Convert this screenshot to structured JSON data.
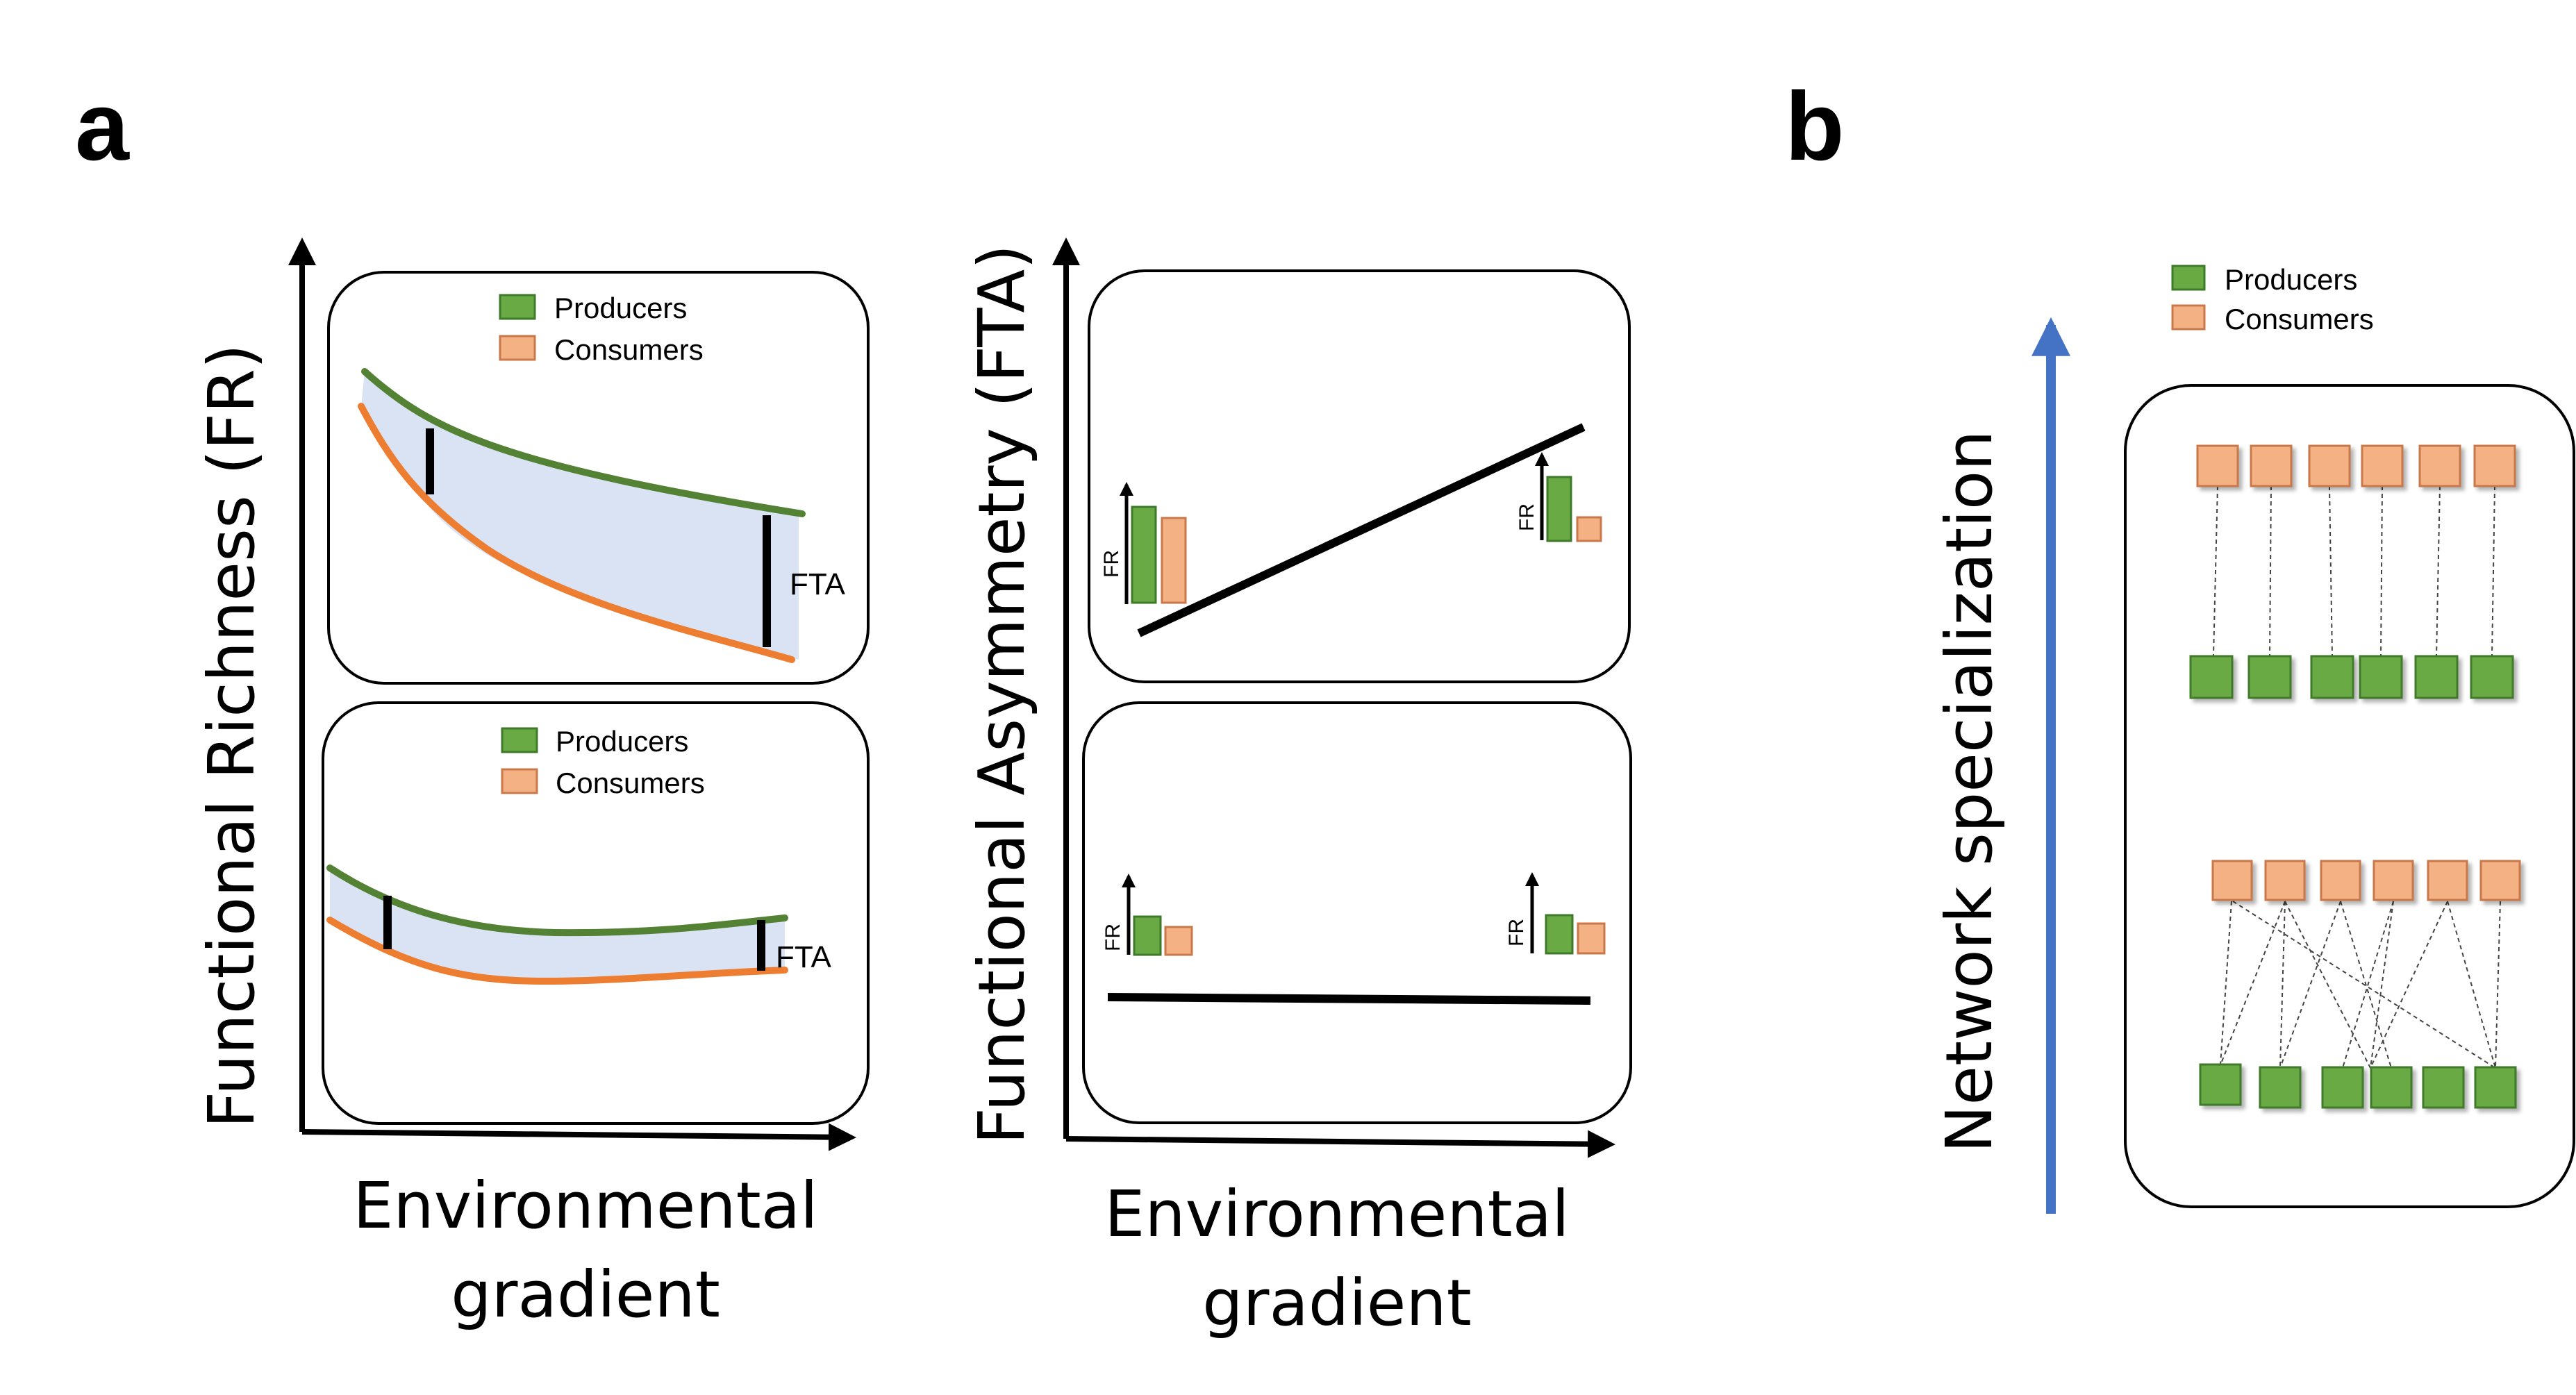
{
  "panel_a": {
    "letter": "a",
    "left_chart": {
      "ylabel": "Functional Richness (FR)",
      "xlabel_line1": "Environmental",
      "xlabel_line2": "gradient",
      "top_box": {
        "legend": [
          "Producers",
          "Consumers"
        ],
        "gap_label": "FTA"
      },
      "bottom_box": {
        "legend": [
          "Producers",
          "Consumers"
        ],
        "gap_label": "FTA"
      }
    },
    "right_chart": {
      "ylabel": "Functional Asymmetry (FTA)",
      "xlabel_line1": "Environmental",
      "xlabel_line2": "gradient",
      "mini_axis_label": "FR"
    }
  },
  "panel_b": {
    "letter": "b",
    "ylabel": "Network specialization",
    "legend": [
      "Producers",
      "Consumers"
    ]
  },
  "colors": {
    "producers": "#6aaa45",
    "consumers": "#f4b184",
    "producers_line": "#548235",
    "consumers_line": "#ed7d31",
    "gap_fill": "#dae3f3",
    "arrow_blue": "#4472c4"
  }
}
